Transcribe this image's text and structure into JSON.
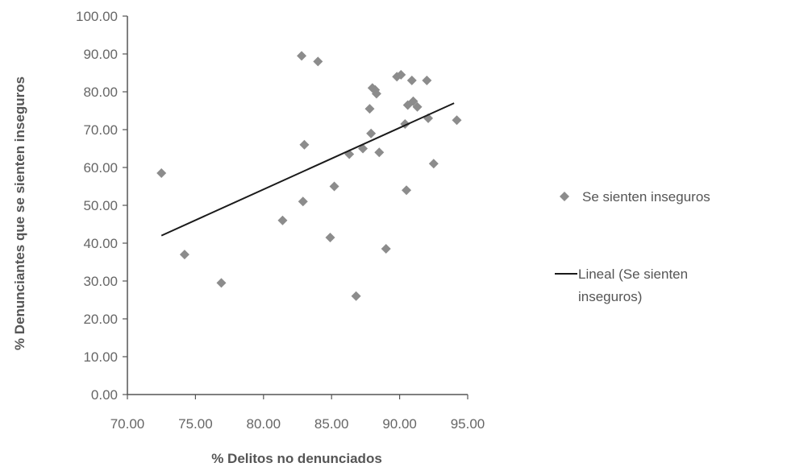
{
  "chart_data": {
    "type": "scatter",
    "title": "",
    "xlabel": "% Delitos no denunciados",
    "ylabel": "% Denunciantes que se sienten inseguros",
    "xlim": [
      70,
      95
    ],
    "ylim": [
      0,
      100
    ],
    "x_ticks": [
      "70.00",
      "75.00",
      "80.00",
      "85.00",
      "90.00",
      "95.00"
    ],
    "y_ticks": [
      "0.00",
      "10.00",
      "20.00",
      "30.00",
      "40.00",
      "50.00",
      "60.00",
      "70.00",
      "80.00",
      "90.00",
      "100.00"
    ],
    "grid": false,
    "legend_position": "right",
    "series": [
      {
        "name": "Se sienten inseguros",
        "marker": "diamond",
        "color": "#8c8c8c",
        "points": [
          [
            72.5,
            58.5
          ],
          [
            74.2,
            37.0
          ],
          [
            76.9,
            29.5
          ],
          [
            81.4,
            46.0
          ],
          [
            82.8,
            89.5
          ],
          [
            82.9,
            51.0
          ],
          [
            83.0,
            66.0
          ],
          [
            84.0,
            88.0
          ],
          [
            84.9,
            41.5
          ],
          [
            85.2,
            55.0
          ],
          [
            86.3,
            63.5
          ],
          [
            86.8,
            26.0
          ],
          [
            87.3,
            65.0
          ],
          [
            87.8,
            75.5
          ],
          [
            87.9,
            69.0
          ],
          [
            88.0,
            81.0
          ],
          [
            88.2,
            80.5
          ],
          [
            88.3,
            79.5
          ],
          [
            88.5,
            64.0
          ],
          [
            89.0,
            38.5
          ],
          [
            89.8,
            84.0
          ],
          [
            90.1,
            84.5
          ],
          [
            90.4,
            71.5
          ],
          [
            90.5,
            54.0
          ],
          [
            90.6,
            76.5
          ],
          [
            90.9,
            83.0
          ],
          [
            91.0,
            77.5
          ],
          [
            91.3,
            76.0
          ],
          [
            92.0,
            83.0
          ],
          [
            92.1,
            73.0
          ],
          [
            92.5,
            61.0
          ],
          [
            94.2,
            72.5
          ]
        ]
      },
      {
        "name": "Lineal (Se sienten inseguros)",
        "type": "line",
        "color": "#1a1a1a",
        "points": [
          [
            72.5,
            42.0
          ],
          [
            94.0,
            77.0
          ]
        ]
      }
    ]
  },
  "legend": {
    "series_label": "Se sienten inseguros",
    "trend_line1": "Lineal (Se sienten",
    "trend_line2": "inseguros)"
  }
}
